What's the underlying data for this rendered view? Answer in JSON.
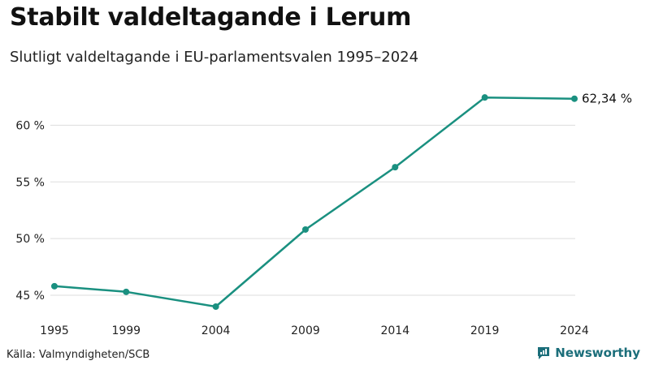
{
  "header": {
    "title": "Stabilt valdeltagande i Lerum",
    "subtitle": "Slutligt valdeltagande i EU-parlamentsvalen 1995–2024"
  },
  "footer": {
    "source": "Källa: Valmyndigheten/SCB",
    "brand": "Newsworthy",
    "brand_icon": "newsworthy-logo-icon"
  },
  "colors": {
    "line": "#1a9080",
    "grid": "#dddddd",
    "brand": "#1b6e7a"
  },
  "chart_data": {
    "type": "line",
    "title": "Stabilt valdeltagande i Lerum",
    "subtitle": "Slutligt valdeltagande i EU-parlamentsvalen 1995–2024",
    "xlabel": "",
    "ylabel": "",
    "categories": [
      "1995",
      "1999",
      "2004",
      "2009",
      "2014",
      "2019",
      "2024"
    ],
    "x": [
      1995,
      1999,
      2004,
      2009,
      2014,
      2019,
      2024
    ],
    "series": [
      {
        "name": "Valdeltagande",
        "values": [
          45.8,
          45.3,
          44.0,
          50.8,
          56.3,
          62.45,
          62.34
        ]
      }
    ],
    "yticks": [
      45,
      50,
      55,
      60
    ],
    "ytick_labels": [
      "45 %",
      "50 %",
      "55 %",
      "60 %"
    ],
    "ylim": [
      44,
      63
    ],
    "end_label": "62,34 %",
    "grid": true,
    "legend": "none"
  }
}
